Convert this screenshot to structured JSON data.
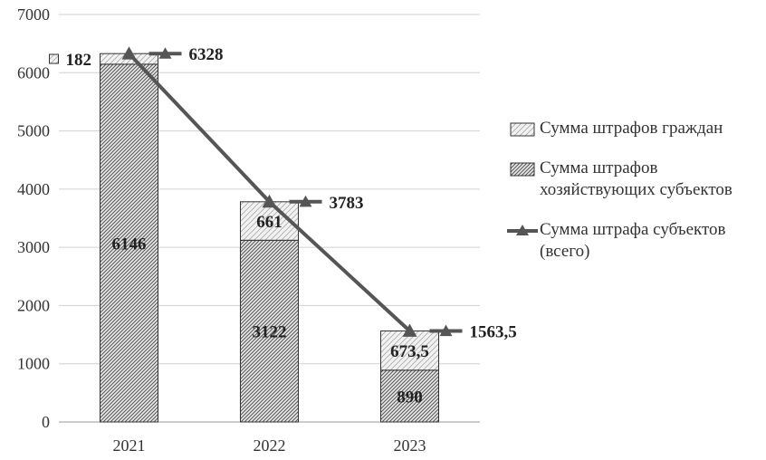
{
  "chart_data": {
    "type": "bar",
    "stacked": true,
    "categories": [
      "2021",
      "2022",
      "2023"
    ],
    "series": [
      {
        "name": "Сумма штрафов хозяйствующих субъектов",
        "kind": "bar",
        "values": [
          6146,
          3122,
          890
        ],
        "labels": [
          "6146",
          "3122",
          "890"
        ],
        "pattern": "dense-diagonal-hatch"
      },
      {
        "name": "Сумма штрафов граждан",
        "kind": "bar",
        "values": [
          182,
          661,
          673.5
        ],
        "labels": [
          "182",
          "661",
          "673,5"
        ],
        "pattern": "light-diagonal-hatch"
      },
      {
        "name": "Сумма штрафа субъектов (всего)",
        "kind": "line",
        "marker": "triangle",
        "values": [
          6328,
          3783,
          1563.5
        ],
        "labels": [
          "6328",
          "3783",
          "1563,5"
        ]
      }
    ],
    "ylim": [
      0,
      7000
    ],
    "yticks": [
      "0",
      "1000",
      "2000",
      "3000",
      "4000",
      "5000",
      "6000",
      "7000"
    ],
    "grid": true,
    "legend_position": "right",
    "colors": {
      "line": "#555555",
      "bar_border": "#333333",
      "grid": "#d0d0d0"
    }
  },
  "legend": {
    "items": [
      {
        "text": "Сумма штрафов граждан"
      },
      {
        "text": "Сумма штрафов хозяйствующих субъектов"
      },
      {
        "text": "Сумма штрафа субъектов (всего)"
      }
    ]
  }
}
